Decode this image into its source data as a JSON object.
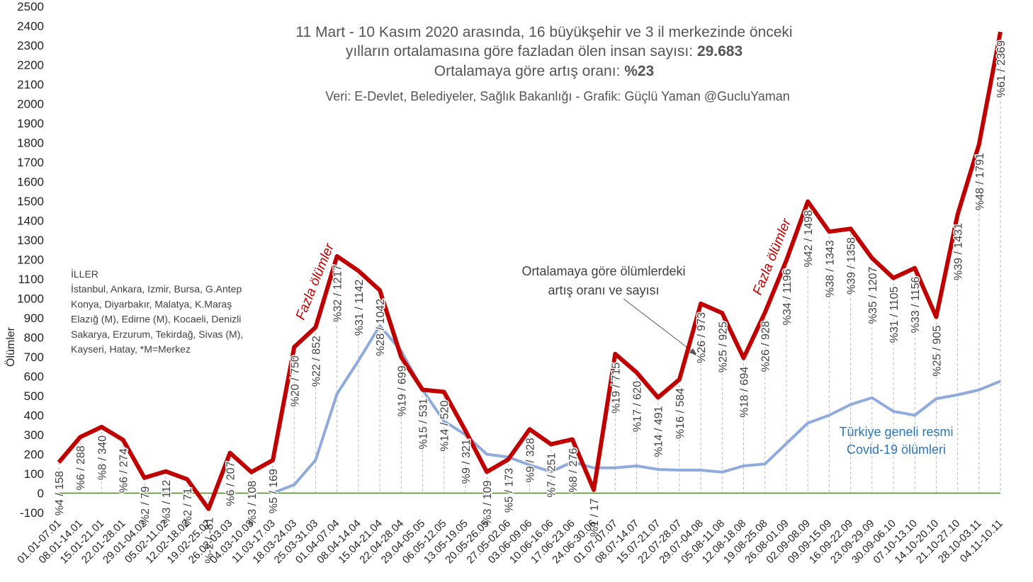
{
  "chart_data": {
    "type": "line",
    "title_lines": [
      "11 Mart - 10 Kasım 2020 arasında, 16 büyükşehir ve 3 il merkezinde önceki",
      "yılların ortalamasına göre fazladan ölen insan sayısı: ",
      "Ortalamaya göre artış oranı: "
    ],
    "title_bold": [
      "29.683",
      "%23"
    ],
    "subtitle": "Veri: E-Devlet, Belediyeler, Sağlık Bakanlığı - Grafik: Güçlü Yaman @GucluYaman",
    "ylabel": "Ölümler",
    "categories": [
      "01.01-07.01",
      "08.01-14.01",
      "15.01-21.01",
      "22.01-28.01",
      "29.01-04.02",
      "05.02-11.02",
      "12.02-18.02",
      "19.02-25.02",
      "26.02-03.03",
      "04.03-10.03",
      "11.03-17.03",
      "18.03-24.03",
      "25.03-31.03",
      "01.04-07.04",
      "08.04-14.04",
      "15.04-21.04",
      "22.04-28.04",
      "29.04-05.05",
      "06.05-12.05",
      "13.05-19.05",
      "20.05-26.05",
      "27.05-02.06",
      "03.06-09.06",
      "10.06-16.06",
      "17.06-23.06",
      "24.06-30.06",
      "01.07-07.07",
      "08.07-14.07",
      "15.07-21.07",
      "22.07-28.07",
      "29.07-04.08",
      "05.08-11.08",
      "12.08-18.08",
      "19.08-25.08",
      "26.08-01.09",
      "02.09-08.09",
      "09.09-15.09",
      "16.09-22.09",
      "23.09-29.09",
      "30.09-06.10",
      "07.10-13.10",
      "14.10-20.10",
      "21.10-27.10",
      "28.10-03.11",
      "04.11-10.11"
    ],
    "series": [
      {
        "color": "#c00000",
        "values": [
          158,
          288,
          340,
          274,
          79,
          112,
          71,
          -81,
          207,
          108,
          169,
          750,
          852,
          1217,
          1142,
          1042,
          699,
          531,
          520,
          321,
          109,
          173,
          328,
          251,
          276,
          17,
          715,
          620,
          491,
          584,
          973,
          925,
          694,
          928,
          1196,
          1498,
          1343,
          1358,
          1207,
          1105,
          1156,
          905,
          1431,
          1791,
          2369
        ],
        "value_labels": [
          "%4 / 158",
          "%6 / 288",
          "%8 / 340",
          "%6 / 274",
          "%2 / 79",
          "%3 / 112",
          "%2 / 71",
          "%-2 / -81",
          "%6 / 207",
          "%3 / 108",
          "%5 / 169",
          "%20 / 750",
          "%22 / 852",
          "%32 / 1217",
          "%31 / 1142",
          "%28 / 1042",
          "%19 / 699",
          "%15 / 531",
          "%14 / 520",
          "%9 / 321",
          "%3 / 109",
          "%5 / 173",
          "%9 / 328",
          "%7 / 251",
          "%8 / 276",
          "%1 / 17",
          "%19 / 715",
          "%17 / 620",
          "%14 / 491",
          "%16 / 584",
          "%26 / 973",
          "%25 / 925",
          "%18 / 694",
          "%26 / 928",
          "%34 / 1196",
          "%42 / 1498",
          "%38 / 1343",
          "%39 / 1358",
          "%35 / 1207",
          "%31 / 1105",
          "%33 / 1156",
          "%25 / 905",
          "%39 / 1431",
          "%48 / 1791",
          "%61 / 2369"
        ]
      },
      {
        "color": "#8faadc",
        "values": [
          null,
          null,
          null,
          null,
          null,
          null,
          null,
          null,
          null,
          null,
          1,
          43,
          170,
          510,
          680,
          860,
          730,
          530,
          370,
          300,
          200,
          185,
          145,
          110,
          160,
          130,
          130,
          140,
          122,
          118,
          118,
          108,
          140,
          150,
          255,
          360,
          400,
          455,
          490,
          420,
          400,
          485,
          505,
          530,
          575
        ]
      }
    ],
    "ylim": [
      -100,
      2500
    ],
    "yticks": [
      -100,
      0,
      100,
      200,
      300,
      400,
      500,
      600,
      700,
      800,
      900,
      1000,
      1100,
      1200,
      1300,
      1400,
      1500,
      1600,
      1700,
      1800,
      1900,
      2000,
      2100,
      2200,
      2300,
      2400,
      2500
    ],
    "zero_line_color": "#548235",
    "provinces": [
      "İLLER",
      "İstanbul, Ankara, Izmir, Bursa, G.Antep",
      "Konya, Diyarbakır, Malatya, K.Maraş",
      "Elazığ (M), Edirne (M), Kocaeli, Denizli",
      "Sakarya, Erzurum, Tekirdağ, Sivas (M),",
      "Kayseri, Hatay, *M=Merkez"
    ],
    "note_lines": [
      "Ortalamaya göre ölümlerdeki",
      "artış oranı ve sayısı"
    ],
    "excess_label": "Fazla ölümler",
    "covid_lines": [
      "Türkiye geneli resmi",
      "Covid-19 ölümleri"
    ]
  }
}
